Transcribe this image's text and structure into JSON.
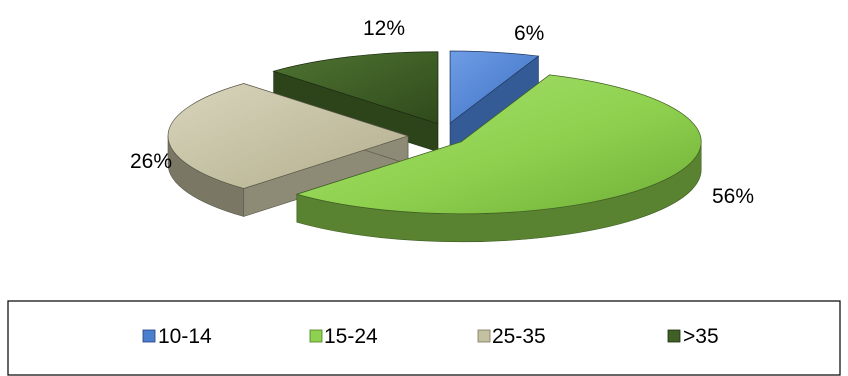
{
  "chart_data": {
    "type": "pie",
    "style": "3d-exploded",
    "categories": [
      "10-14",
      "15-24",
      "25-35",
      ">35"
    ],
    "values": [
      6,
      56,
      26,
      12
    ],
    "value_labels": [
      "6%",
      "56%",
      "26%",
      "12%"
    ],
    "colors": [
      "#4a7fd0",
      "#8fd14f",
      "#c4c0a2",
      "#3f5f25"
    ],
    "legend_position": "bottom"
  }
}
